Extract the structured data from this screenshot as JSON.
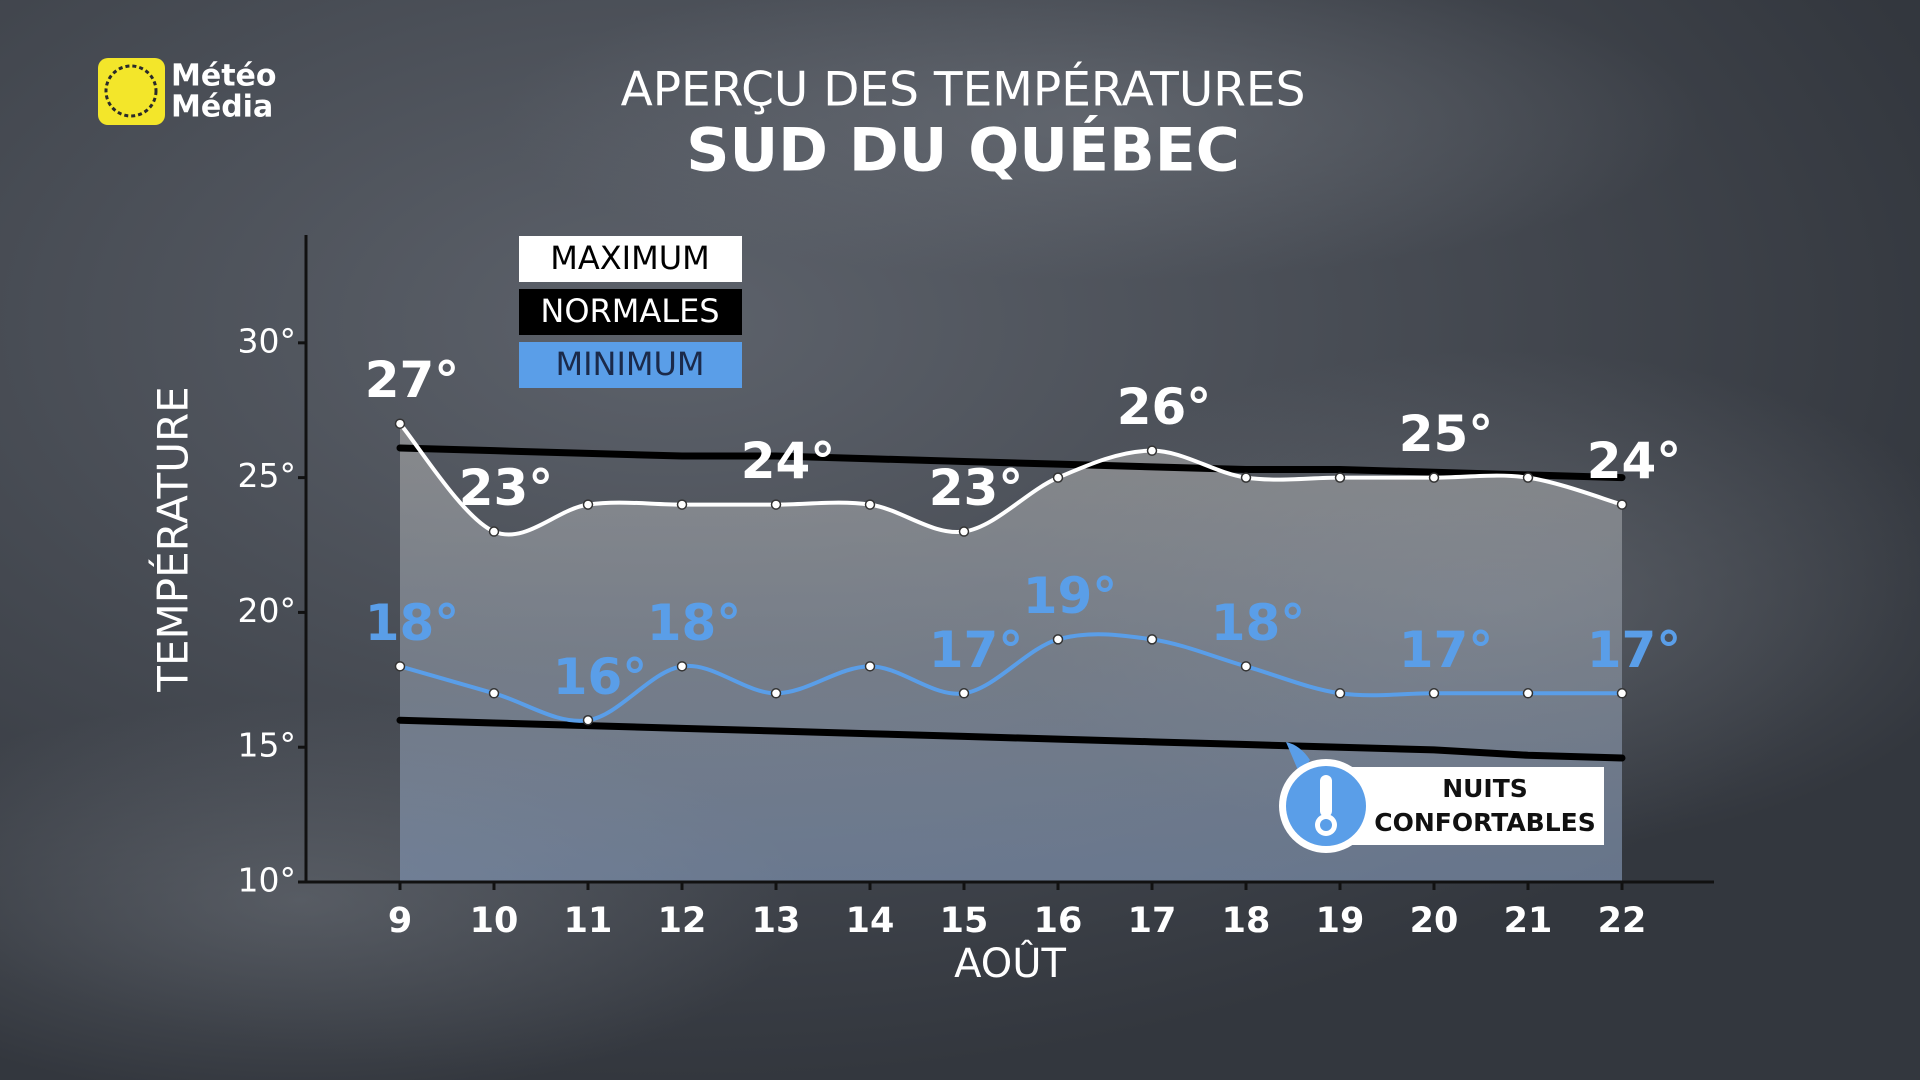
{
  "logo": {
    "lines": [
      "Météo",
      "Média"
    ]
  },
  "chart_data": {
    "type": "line",
    "title": "APERÇU DES TEMPÉRATURES",
    "subtitle": "SUD DU QUÉBEC",
    "ylabel": "TEMPÉRATURE",
    "xlabel": "AOÛT",
    "categories": [
      "9",
      "10",
      "11",
      "12",
      "13",
      "14",
      "15",
      "16",
      "17",
      "18",
      "19",
      "20",
      "21",
      "22"
    ],
    "ylim": [
      10,
      34
    ],
    "yticks": [
      {
        "value": 10,
        "label": "10°"
      },
      {
        "value": 15,
        "label": "15°"
      },
      {
        "value": 20,
        "label": "20°"
      },
      {
        "value": 25,
        "label": "25°"
      },
      {
        "value": 30,
        "label": "30°"
      }
    ],
    "grid": false,
    "series": [
      {
        "name": "MAXIMUM",
        "color": "#ffffff",
        "values": [
          27,
          23,
          24,
          24,
          24,
          24,
          23,
          25,
          26,
          25,
          25,
          25,
          25,
          24
        ],
        "value_labels": [
          "27°",
          "23°",
          null,
          null,
          "24°",
          null,
          "23°",
          null,
          "26°",
          null,
          null,
          "25°",
          null,
          "24°"
        ]
      },
      {
        "name": "NORMALES",
        "color": "#000000",
        "values": [
          26.1,
          26.0,
          25.9,
          25.8,
          25.8,
          25.7,
          25.6,
          25.5,
          25.4,
          25.3,
          25.3,
          25.2,
          25.1,
          25.0
        ]
      },
      {
        "color": "#000000",
        "values": [
          16.0,
          15.9,
          15.8,
          15.7,
          15.6,
          15.5,
          15.4,
          15.3,
          15.2,
          15.1,
          15.0,
          14.9,
          14.7,
          14.6
        ]
      },
      {
        "name": "MINIMUM",
        "color": "#5a9ee8",
        "values": [
          18,
          17,
          16,
          18,
          17,
          18,
          17,
          19,
          19,
          18,
          17,
          17,
          17,
          17
        ],
        "value_labels": [
          "18°",
          null,
          "16°",
          "18°",
          null,
          null,
          "17°",
          "19°",
          null,
          "18°",
          null,
          "17°",
          null,
          "17°"
        ]
      }
    ],
    "annotation": {
      "lines": [
        "NUITS",
        "CONFORTABLES"
      ]
    }
  }
}
